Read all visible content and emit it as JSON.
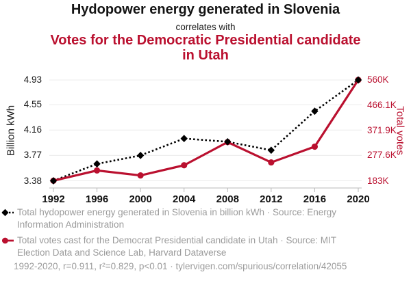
{
  "header": {
    "title_top": "Hydopower energy generated in Slovenia",
    "connector": "correlates with",
    "title_bottom": "Votes for the Democratic Presidential candidate in Utah"
  },
  "chart_data": {
    "type": "line",
    "title": "Hydopower energy generated in Slovenia correlates with Votes for the Democratic Presidential candidate in Utah",
    "x": [
      1992,
      1996,
      2000,
      2004,
      2008,
      2012,
      2016,
      2020
    ],
    "x_tick_labels": [
      "1992",
      "1996",
      "2000",
      "2004",
      "2008",
      "2012",
      "2016",
      "2020"
    ],
    "series": [
      {
        "name": "Total hydopower energy generated in Slovenia in billion kWh",
        "axis": "left",
        "color": "#000000",
        "style": "dotted",
        "marker": "diamond",
        "values": [
          3.38,
          3.64,
          3.77,
          4.03,
          3.98,
          3.85,
          4.45,
          4.93
        ]
      },
      {
        "name": "Total votes cast for the Democrat Presidential candidate in Utah",
        "axis": "right",
        "color": "#ba102f",
        "style": "solid",
        "marker": "circle",
        "values": [
          183429,
          221633,
          203053,
          241199,
          327670,
          251813,
          310676,
          560282
        ]
      }
    ],
    "left_axis": {
      "label": "Billion kWh",
      "range": [
        3.38,
        4.93
      ],
      "ticks": [
        {
          "value": 4.93,
          "label": "4.93"
        },
        {
          "value": 4.55,
          "label": "4.55"
        },
        {
          "value": 4.16,
          "label": "4.16"
        },
        {
          "value": 3.77,
          "label": "3.77"
        },
        {
          "value": 3.38,
          "label": "3.38"
        }
      ]
    },
    "right_axis": {
      "label": "Total votes",
      "range": [
        183000,
        560000
      ],
      "ticks": [
        {
          "value": 560000,
          "label": "560K"
        },
        {
          "value": 466100,
          "label": "466.1K"
        },
        {
          "value": 371900,
          "label": "371.9K"
        },
        {
          "value": 277600,
          "label": "277.6K"
        },
        {
          "value": 183000,
          "label": "183K"
        }
      ]
    },
    "grid": true,
    "legend_position": "bottom"
  },
  "legend": {
    "items": [
      {
        "label": "Total hydopower energy generated in Slovenia in billion kWh · Source: Energy Information Administration",
        "marker": "black-diamond-dotted-line"
      },
      {
        "label": "Total votes cast for the Democrat Presidential candidate in Utah · Source: MIT Election Data and Science Lab, Harvard Dataverse",
        "marker": "red-circle-solid-line"
      }
    ]
  },
  "footer": {
    "stats": "1992-2020, r=0.911, r²=0.829, p<0.01 · tylervigen.com/spurious/correlation/42055"
  },
  "colors": {
    "accent_red": "#ba102f",
    "series_black": "#000000",
    "text_gray": "#9b9b9b",
    "grid": "#ececec",
    "axis": "#b8b8b8",
    "title_black": "#131313"
  }
}
